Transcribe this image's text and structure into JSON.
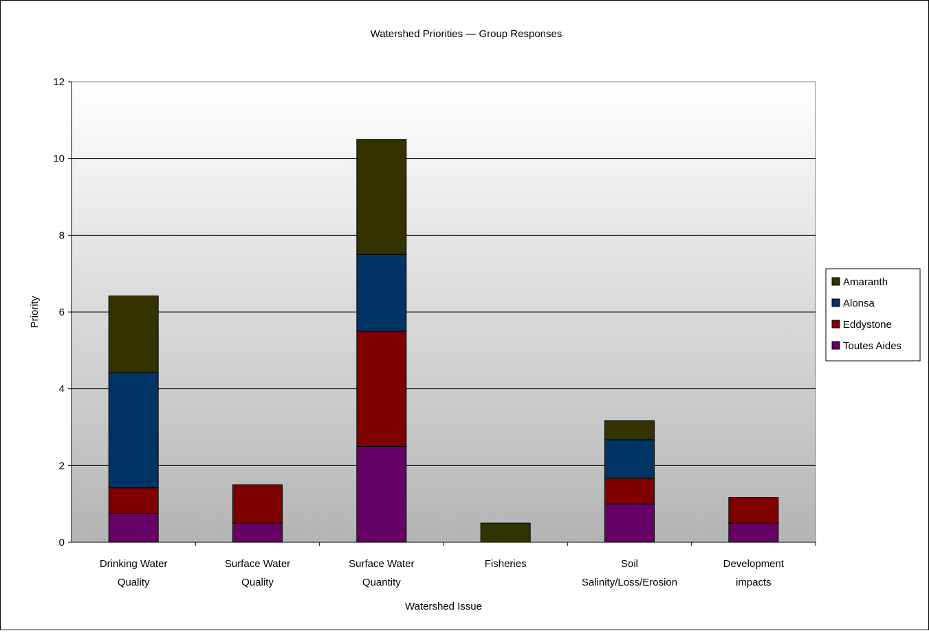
{
  "chart_data": {
    "type": "bar",
    "stacked": true,
    "title": "Watershed Priorities — Group Responses",
    "xlabel": "Watershed Issue",
    "ylabel": "Priority",
    "ylim": [
      0,
      12
    ],
    "yticks": [
      0,
      2,
      4,
      6,
      8,
      10,
      12
    ],
    "grid": true,
    "legend_position": "right",
    "categories": [
      [
        "Drinking Water",
        "Quality"
      ],
      [
        "Surface Water",
        "Quality"
      ],
      [
        "Surface Water",
        "Quantity"
      ],
      [
        "Fisheries"
      ],
      [
        "Soil",
        "Salinity/Loss/Erosion"
      ],
      [
        "Development",
        "impacts"
      ]
    ],
    "series": [
      {
        "name": "Toutes Aides",
        "color": "#660066",
        "values": [
          0.75,
          0.5,
          2.5,
          0,
          1.0,
          0.5
        ]
      },
      {
        "name": "Eddystone",
        "color": "#800000",
        "values": [
          0.67,
          1.0,
          3.0,
          0,
          0.67,
          0.67
        ]
      },
      {
        "name": "Alonsa",
        "color": "#003366",
        "values": [
          3.0,
          0,
          2.0,
          0,
          1.0,
          0
        ]
      },
      {
        "name": "Amaranth",
        "color": "#333300",
        "values": [
          2.0,
          0,
          3.0,
          0.5,
          0.5,
          0
        ]
      }
    ]
  }
}
